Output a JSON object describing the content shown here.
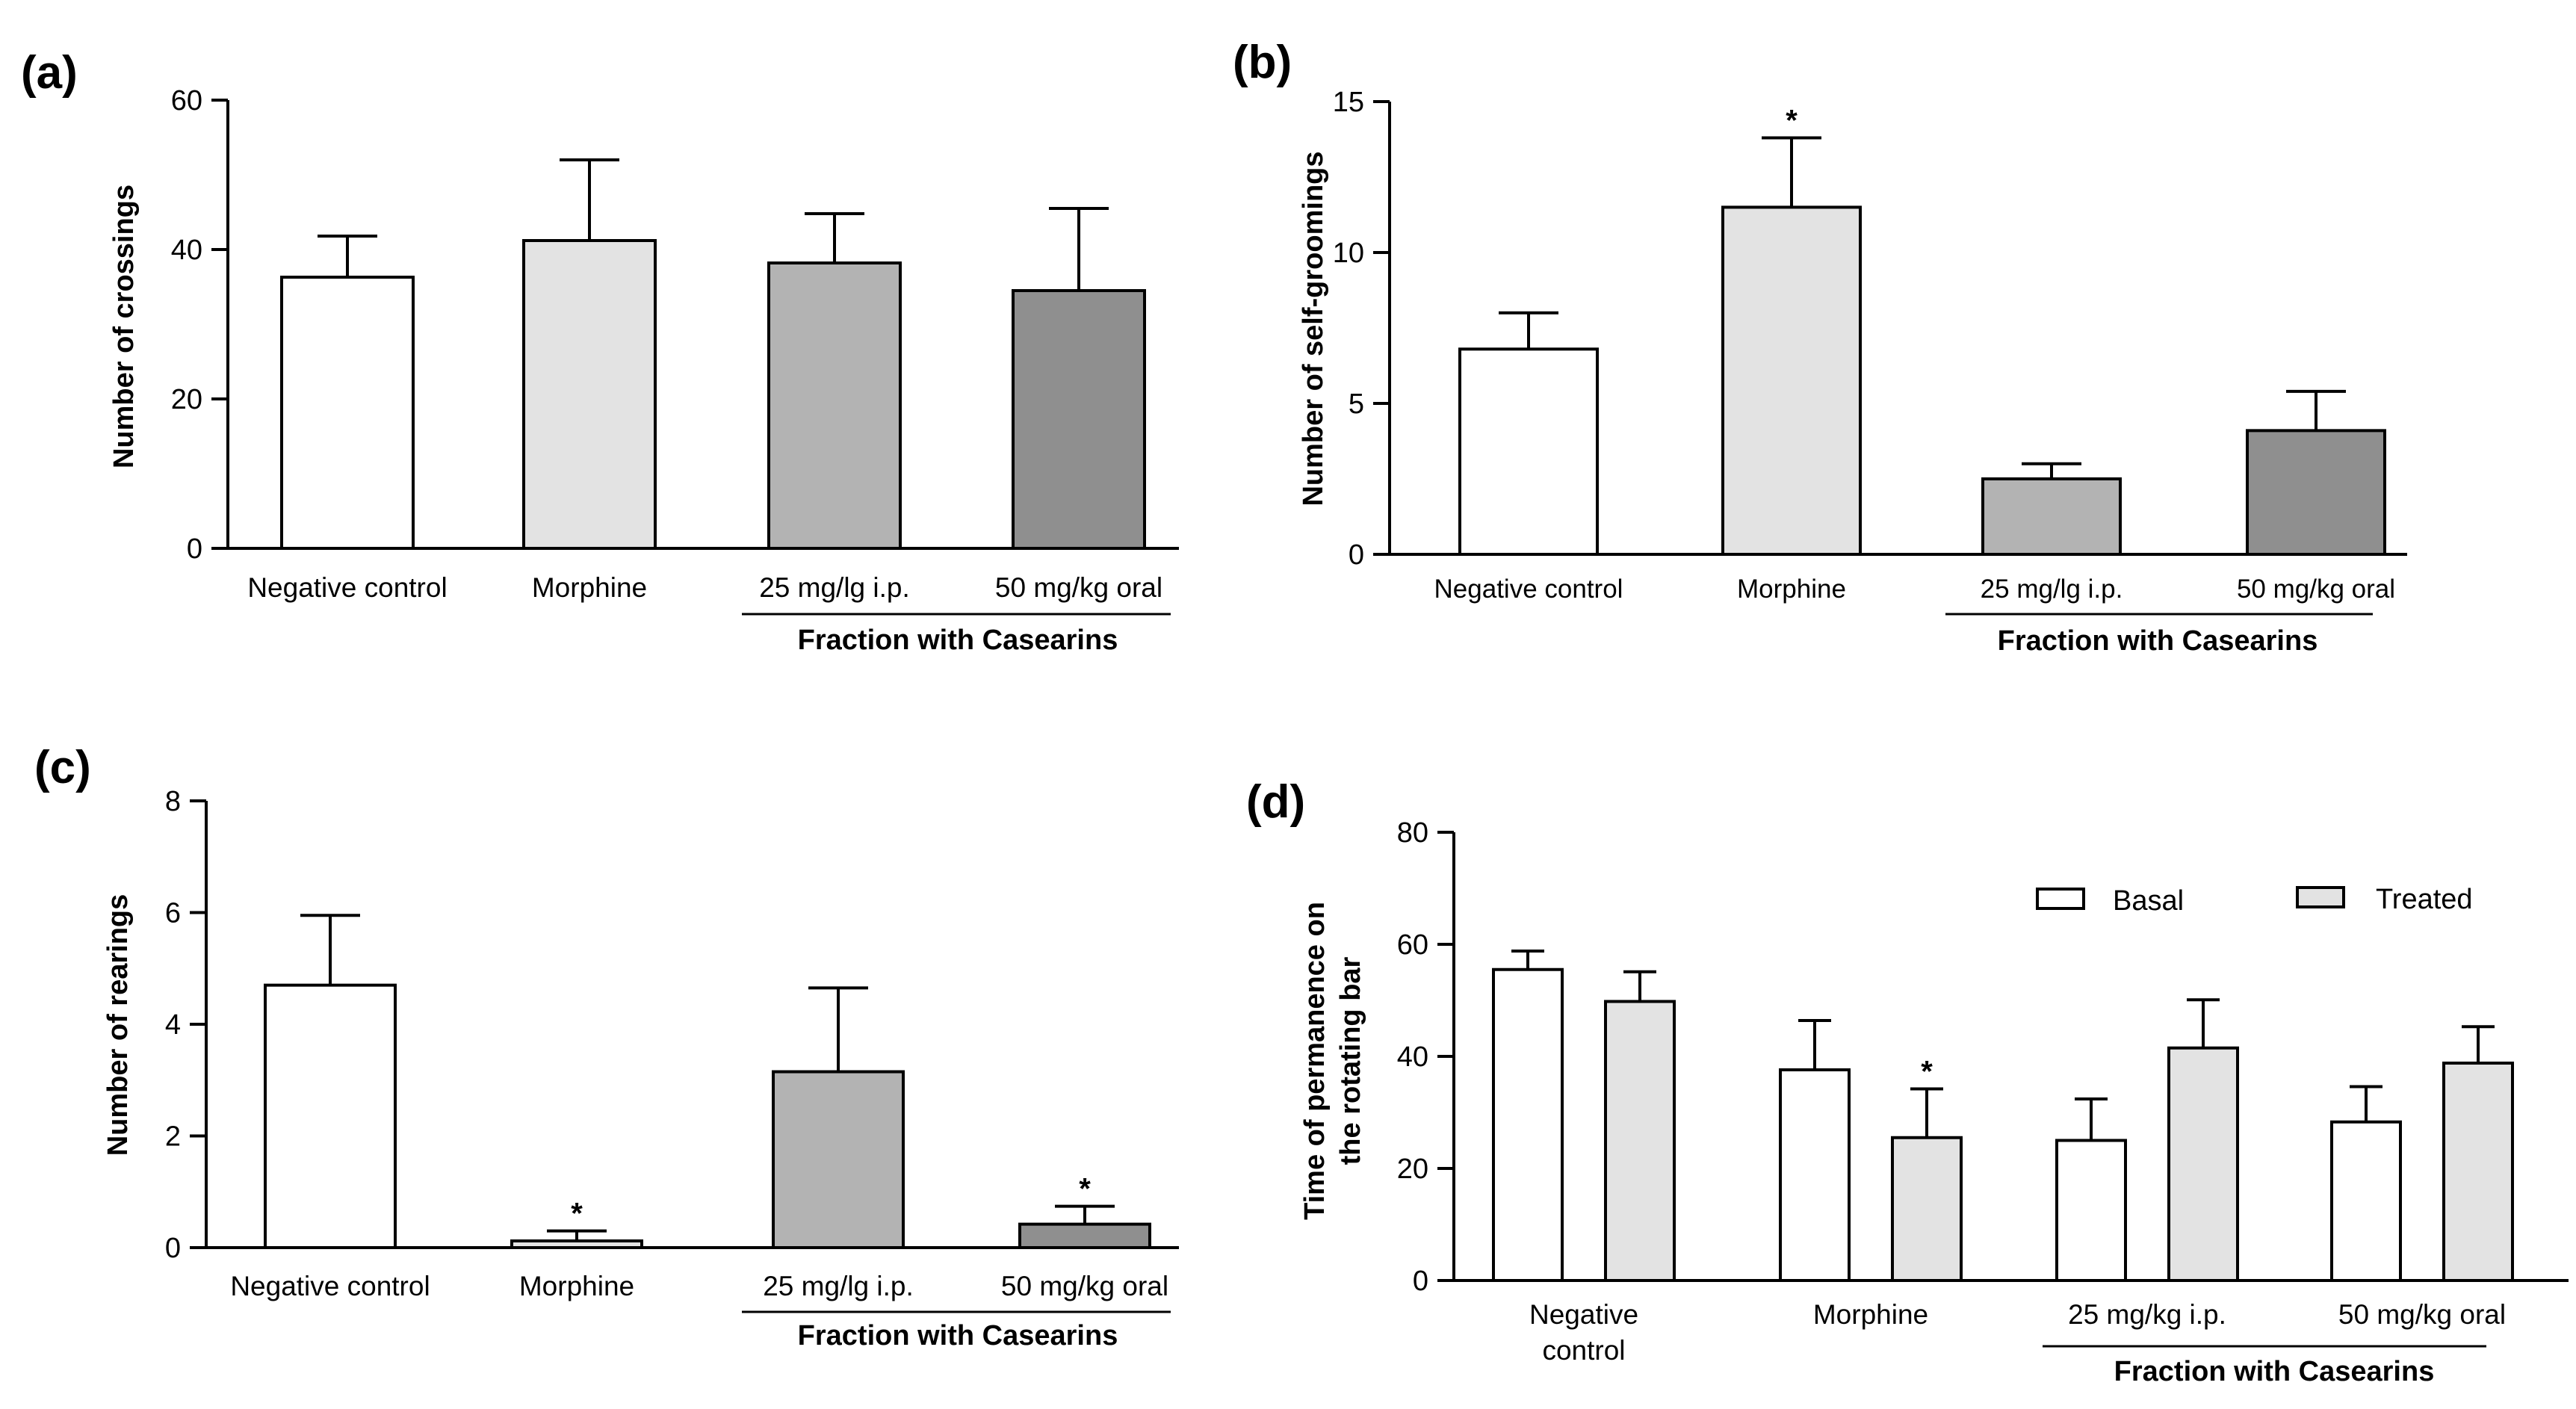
{
  "chart_data": [
    {
      "type": "bar",
      "panel_label": "(a)",
      "ylabel": "Number of crossings",
      "ylim": [
        0,
        60
      ],
      "yticks": [
        "0",
        "20",
        "40",
        "60"
      ],
      "categories": [
        "Negative control",
        "Morphine",
        "25 mg/lg i.p.",
        "50 mg/kg oral"
      ],
      "group_label": "Fraction with Casearins",
      "values": [
        36.3,
        41.2,
        38.2,
        34.5
      ],
      "errors": [
        5.5,
        10.8,
        6.6,
        11.0
      ],
      "significance": [
        "",
        "",
        "",
        ""
      ],
      "bar_colors": [
        "#ffffff",
        "#e3e3e3",
        "#b3b3b3",
        "#8f8f8f"
      ]
    },
    {
      "type": "bar",
      "panel_label": "(b)",
      "ylabel": "Number of self-groomings",
      "ylim": [
        0,
        15
      ],
      "yticks": [
        "0",
        "5",
        "10",
        "15"
      ],
      "categories": [
        "Negative control",
        "Morphine",
        "25 mg/lg i.p.",
        "50 mg/kg oral"
      ],
      "group_label": "Fraction with Casearins",
      "values": [
        6.8,
        11.5,
        2.5,
        4.1
      ],
      "errors": [
        1.2,
        2.3,
        0.5,
        1.3
      ],
      "significance": [
        "",
        "*",
        "",
        ""
      ],
      "bar_colors": [
        "#ffffff",
        "#e3e3e3",
        "#b3b3b3",
        "#8f8f8f"
      ]
    },
    {
      "type": "bar",
      "panel_label": "(c)",
      "ylabel": "Number of rearings",
      "ylim": [
        0,
        8
      ],
      "yticks": [
        "0",
        "2",
        "4",
        "6",
        "8"
      ],
      "categories": [
        "Negative control",
        "Morphine",
        "25 mg/lg i.p.",
        "50 mg/kg oral"
      ],
      "group_label": "Fraction with Casearins",
      "values": [
        4.7,
        0.12,
        3.15,
        0.42
      ],
      "errors": [
        1.25,
        0.18,
        1.5,
        0.32
      ],
      "significance": [
        "",
        "*",
        "",
        "*"
      ],
      "bar_colors": [
        "#ffffff",
        "#e3e3e3",
        "#b3b3b3",
        "#8f8f8f"
      ]
    },
    {
      "type": "bar",
      "panel_label": "(d)",
      "ylabel": [
        "Time of permanence on",
        "the rotating bar"
      ],
      "ylim": [
        0,
        80
      ],
      "yticks": [
        "0",
        "20",
        "40",
        "60",
        "80"
      ],
      "categories": [
        [
          "Negative",
          "control"
        ],
        [
          "Morphine"
        ],
        [
          "25 mg/kg i.p."
        ],
        [
          "50 mg/kg oral"
        ]
      ],
      "group_label": "Fraction with Casearins",
      "series": [
        {
          "name": "Basal",
          "color": "#ffffff",
          "values": [
            55.5,
            37.6,
            25.0,
            28.3
          ],
          "errors": [
            3.3,
            8.8,
            7.4,
            6.3
          ],
          "significance": [
            "",
            "",
            "",
            ""
          ]
        },
        {
          "name": "Treated",
          "color": "#e3e3e3",
          "values": [
            49.8,
            25.5,
            41.5,
            38.8
          ],
          "errors": [
            5.3,
            8.7,
            8.6,
            6.5
          ],
          "significance": [
            "",
            "*",
            "",
            ""
          ]
        }
      ],
      "legend_position": "top-right"
    }
  ]
}
